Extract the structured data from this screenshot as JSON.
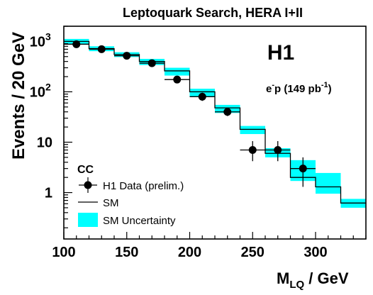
{
  "chart_data": {
    "type": "histogram",
    "title": "Leptoquark Search, HERA I+II",
    "experiment_label": "H1",
    "beam_label": {
      "base": "e",
      "sup": "-",
      "mid": "p (149 pb",
      "sup2": "-1",
      "end": ")"
    },
    "channel_label": "CC",
    "ylabel": "Events / 20 GeV",
    "xlabel": {
      "main": "M",
      "sub": "LQ",
      "unit": " / GeV"
    },
    "xlim": [
      100,
      340
    ],
    "ylim": [
      0.12,
      2000
    ],
    "y_scale": "log",
    "x_ticks": [
      "100",
      "150",
      "200",
      "250",
      "300"
    ],
    "y_ticks": [
      {
        "base": "10",
        "exp": "3",
        "value": 1000
      },
      {
        "base": "10",
        "exp": "2",
        "value": 100
      },
      {
        "base": "10",
        "exp": "",
        "value": 10
      },
      {
        "base": "1",
        "exp": "",
        "value": 1
      }
    ],
    "bin_edges": [
      100,
      120,
      140,
      160,
      180,
      200,
      220,
      240,
      260,
      280,
      300,
      320,
      340
    ],
    "sm_prediction": [
      1000,
      720,
      550,
      400,
      260,
      100,
      48,
      18,
      6.0,
      2.0,
      1.3,
      0.62
    ],
    "sm_uncertainty": [
      [
        880,
        1120
      ],
      [
        640,
        800
      ],
      [
        490,
        610
      ],
      [
        340,
        450
      ],
      [
        210,
        300
      ],
      [
        80,
        115
      ],
      [
        38,
        55
      ],
      [
        14.5,
        21
      ],
      [
        5.0,
        7.6
      ],
      [
        1.7,
        4.4
      ],
      [
        0.95,
        2.45
      ],
      [
        0.5,
        0.75
      ]
    ],
    "data": [
      {
        "x": 110,
        "y": 880,
        "err": [
          800,
          980
        ]
      },
      {
        "x": 130,
        "y": 700,
        "err": [
          620,
          780
        ]
      },
      {
        "x": 150,
        "y": 520,
        "err": [
          460,
          590
        ]
      },
      {
        "x": 170,
        "y": 370,
        "err": [
          320,
          420
        ]
      },
      {
        "x": 190,
        "y": 175,
        "err": [
          150,
          205
        ]
      },
      {
        "x": 210,
        "y": 80,
        "err": [
          66,
          96
        ]
      },
      {
        "x": 230,
        "y": 40,
        "err": [
          33,
          48
        ]
      },
      {
        "x": 250,
        "y": 7,
        "err": [
          4.2,
          10.5
        ]
      },
      {
        "x": 270,
        "y": 7,
        "err": [
          4.2,
          10.5
        ]
      },
      {
        "x": 290,
        "y": 3,
        "err": [
          1.3,
          5.0
        ]
      }
    ],
    "legend": {
      "placement": "bottom-left",
      "entries": [
        "H1 Data (prelim.)",
        "SM",
        "SM Uncertainty"
      ]
    },
    "colors": {
      "uncertainty_band": "#00ffff",
      "line": "#000000",
      "marker": "#000000"
    },
    "grid": false
  }
}
